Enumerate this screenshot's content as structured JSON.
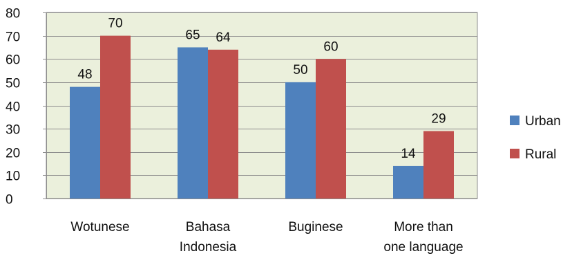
{
  "chart_data": {
    "type": "bar",
    "categories": [
      [
        "Wotunese"
      ],
      [
        "Bahasa",
        "Indonesia"
      ],
      [
        "Buginese"
      ],
      [
        "More than",
        "one language"
      ]
    ],
    "series": [
      {
        "name": "Urban",
        "values": [
          48,
          65,
          50,
          14
        ]
      },
      {
        "name": "Rural",
        "values": [
          70,
          64,
          60,
          29
        ]
      }
    ],
    "ylim": [
      0,
      80
    ],
    "yticks": [
      0,
      10,
      20,
      30,
      40,
      50,
      60,
      70,
      80
    ],
    "grid": true,
    "legend": "right",
    "title": "",
    "xlabel": "",
    "ylabel": ""
  },
  "colors": {
    "plot_background": "#ebf0dc",
    "grid": "#8c8c8c",
    "urban": "#4f81bd",
    "rural": "#c0504d"
  }
}
